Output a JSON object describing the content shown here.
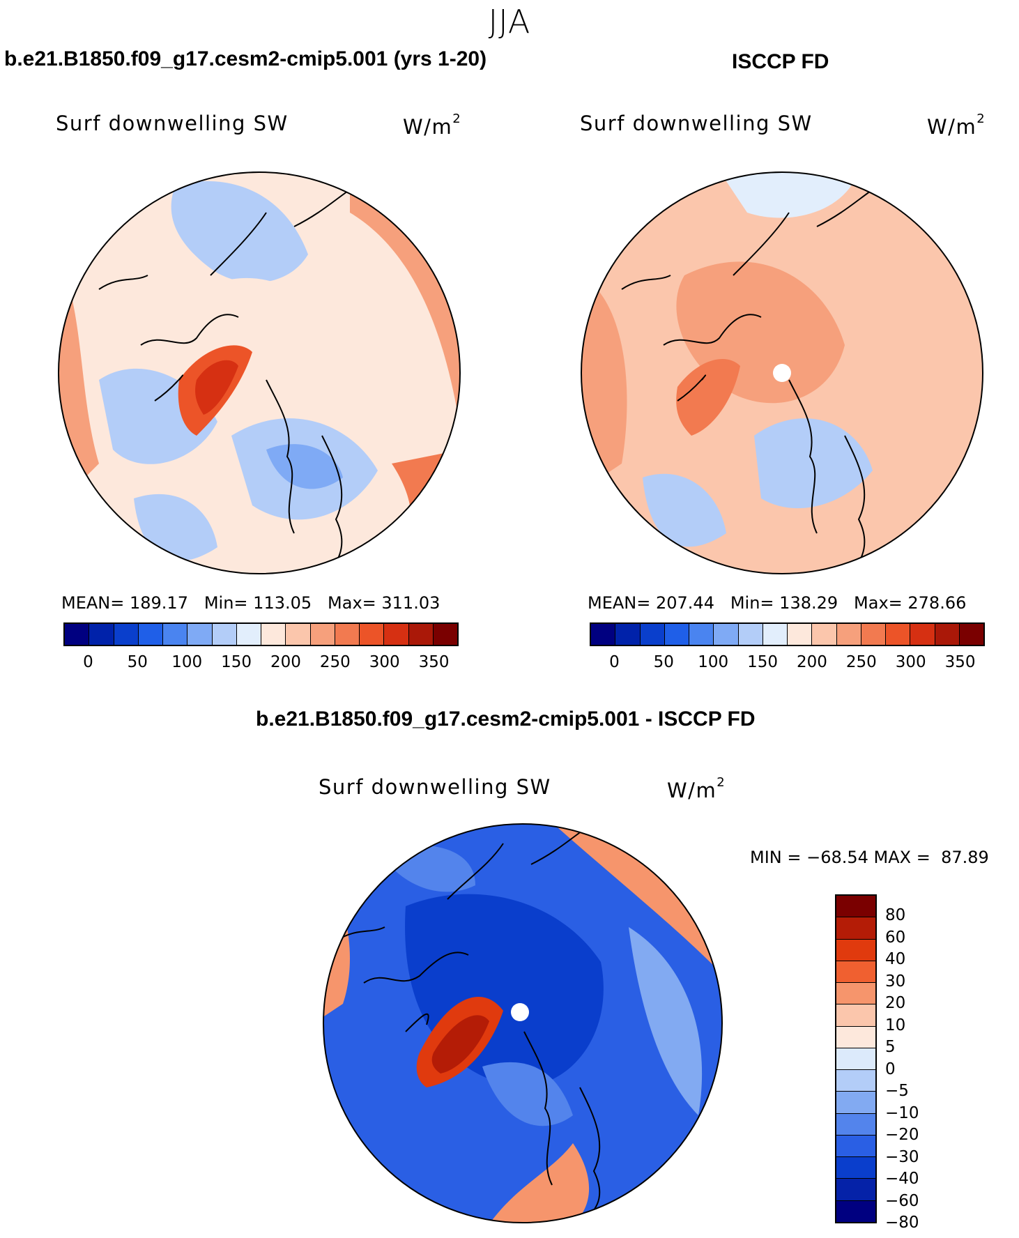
{
  "season": "JJA",
  "panels": [
    {
      "title": "b.e21.B1850.f09_g17.cesm2-cmip5.001 (yrs 1-20)",
      "variable": "Surf downwelling SW",
      "units": "W/m",
      "units_exp": "2",
      "stats": "MEAN= 189.17   Min= 113.05   Max= 311.03"
    },
    {
      "title": "ISCCP FD",
      "variable": "Surf downwelling SW",
      "units": "W/m",
      "units_exp": "2",
      "stats": "MEAN= 207.44   Min= 138.29   Max= 278.66"
    }
  ],
  "diff_panel": {
    "title": "b.e21.B1850.f09_g17.cesm2-cmip5.001 - ISCCP FD",
    "variable": "Surf downwelling SW",
    "units": "W/m",
    "units_exp": "2",
    "minmax": "MIN = −68.54 MAX =  87.89"
  },
  "abs_colorbar": {
    "colors": [
      "#000080",
      "#0022aa",
      "#0a3fcc",
      "#1f5fe8",
      "#4a84f0",
      "#7faaf5",
      "#b3cdf8",
      "#e2eefc",
      "#fde8dc",
      "#fbc6ac",
      "#f6a07c",
      "#f27a50",
      "#ec5428",
      "#d63012",
      "#aa1808",
      "#7a0000"
    ],
    "ticks": [
      "0",
      "50",
      "100",
      "150",
      "200",
      "250",
      "300",
      "350"
    ]
  },
  "diff_colorbar": {
    "colors": [
      "#7a0000",
      "#b41c06",
      "#e03a0e",
      "#f06030",
      "#f6956c",
      "#fbc6ac",
      "#fde8dc",
      "#dceafb",
      "#b3cdf8",
      "#82aaf2",
      "#5384ec",
      "#2a5fe4",
      "#0a3ecc",
      "#0522a8",
      "#000080"
    ],
    "ticks": [
      "80",
      "60",
      "40",
      "30",
      "20",
      "10",
      "5",
      "0",
      "−5",
      "−10",
      "−20",
      "−30",
      "−40",
      "−60",
      "−80"
    ]
  },
  "map_fields": {
    "model": {
      "bg": "#fde8dc",
      "ocean_band": "#f6a07c",
      "arctic": "#fde8dc",
      "cool": "#b3cdf8",
      "cool2": "#7faaf5",
      "greenland": "#ec5428",
      "greenland_core": "#d63012",
      "europe": "#f27a50"
    },
    "obs": {
      "bg": "#fbc6ac",
      "arctic": "#f6a07c",
      "cool": "#b3cdf8",
      "pale": "#e2eefc",
      "greenland": "#f27a50",
      "pole_hole": "#ffffff"
    },
    "diff": {
      "bg": "#2a5fe4",
      "deep": "#0a3ecc",
      "light": "#5384ec",
      "pale": "#82aaf2",
      "edge_warm": "#f6956c",
      "greenland": "#e03a0e",
      "greenland_core": "#b41c06",
      "pole_hole": "#ffffff"
    }
  }
}
